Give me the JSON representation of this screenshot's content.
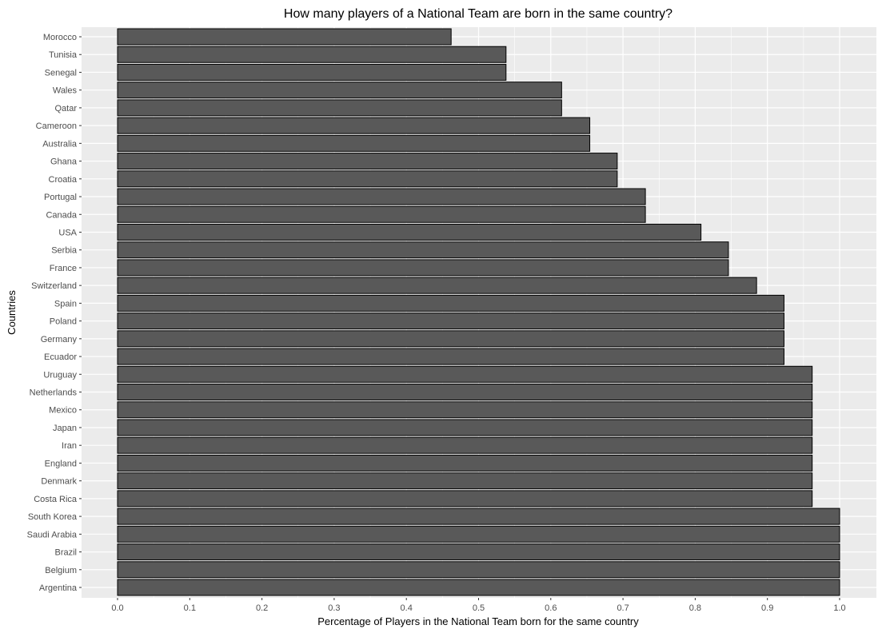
{
  "chart_data": {
    "type": "bar",
    "orientation": "horizontal",
    "title": "How many players of a National Team are born in the same country?",
    "xlabel": "Percentage of Players in the National Team born for the same country",
    "ylabel": "Countries",
    "xlim": [
      0,
      1
    ],
    "x_ticks": [
      "0.0",
      "0.1",
      "0.2",
      "0.3",
      "0.4",
      "0.5",
      "0.6",
      "0.7",
      "0.8",
      "0.9",
      "1.0"
    ],
    "grid": true,
    "categories": [
      "Morocco",
      "Tunisia",
      "Senegal",
      "Wales",
      "Qatar",
      "Cameroon",
      "Australia",
      "Ghana",
      "Croatia",
      "Portugal",
      "Canada",
      "USA",
      "Serbia",
      "France",
      "Switzerland",
      "Spain",
      "Poland",
      "Germany",
      "Ecuador",
      "Uruguay",
      "Netherlands",
      "Mexico",
      "Japan",
      "Iran",
      "England",
      "Denmark",
      "Costa Rica",
      "South Korea",
      "Saudi Arabia",
      "Brazil",
      "Belgium",
      "Argentina"
    ],
    "values": [
      0.462,
      0.538,
      0.538,
      0.615,
      0.615,
      0.654,
      0.654,
      0.692,
      0.692,
      0.731,
      0.731,
      0.808,
      0.846,
      0.846,
      0.885,
      0.923,
      0.923,
      0.923,
      0.923,
      0.962,
      0.962,
      0.962,
      0.962,
      0.962,
      0.962,
      0.962,
      0.962,
      1.0,
      1.0,
      1.0,
      1.0,
      1.0
    ],
    "colors": {
      "bar_fill": "#595959",
      "bar_stroke": "#000000",
      "panel": "#ebebeb",
      "grid": "#ffffff"
    }
  }
}
